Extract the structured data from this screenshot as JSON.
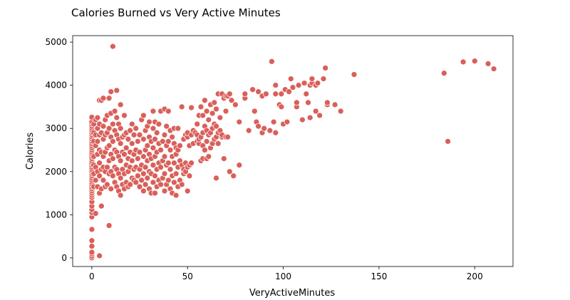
{
  "chart_data": {
    "type": "scatter",
    "title": "Calories Burned vs Very Active Minutes",
    "xlabel": "VeryActiveMinutes",
    "ylabel": "Calories",
    "xlim": [
      -10,
      220
    ],
    "ylim": [
      -200,
      5150
    ],
    "xticks": [
      0,
      50,
      100,
      150,
      200
    ],
    "yticks": [
      0,
      1000,
      2000,
      3000,
      4000,
      5000
    ],
    "grid": false,
    "legend": "none",
    "color": "#d9605a",
    "points": [
      [
        0,
        0
      ],
      [
        0,
        40
      ],
      [
        0,
        90
      ],
      [
        0,
        130
      ],
      [
        0,
        270
      ],
      [
        0,
        400
      ],
      [
        0,
        660
      ],
      [
        0,
        950
      ],
      [
        0,
        1050
      ],
      [
        0,
        1120
      ],
      [
        0,
        1200
      ],
      [
        0,
        1300
      ],
      [
        0,
        1400
      ],
      [
        0,
        1450
      ],
      [
        0,
        1500
      ],
      [
        0,
        1550
      ],
      [
        0,
        1600
      ],
      [
        0,
        1650
      ],
      [
        0,
        1700
      ],
      [
        0,
        1750
      ],
      [
        0,
        1800
      ],
      [
        0,
        1850
      ],
      [
        0,
        1900
      ],
      [
        0,
        1950
      ],
      [
        0,
        2000
      ],
      [
        0,
        2050
      ],
      [
        0,
        2100
      ],
      [
        0,
        2150
      ],
      [
        0,
        2200
      ],
      [
        0,
        2250
      ],
      [
        0,
        2300
      ],
      [
        0,
        2350
      ],
      [
        0,
        2400
      ],
      [
        0,
        2450
      ],
      [
        0,
        2500
      ],
      [
        0,
        2550
      ],
      [
        0,
        2600
      ],
      [
        0,
        2650
      ],
      [
        0,
        2700
      ],
      [
        0,
        2750
      ],
      [
        0,
        2800
      ],
      [
        0,
        2850
      ],
      [
        0,
        2900
      ],
      [
        0,
        2950
      ],
      [
        0,
        3000
      ],
      [
        0,
        3050
      ],
      [
        0,
        3100
      ],
      [
        0,
        3150
      ],
      [
        0,
        3260
      ],
      [
        1,
        1650
      ],
      [
        1,
        1950
      ],
      [
        1,
        2150
      ],
      [
        1,
        2350
      ],
      [
        1,
        2700
      ],
      [
        1,
        2900
      ],
      [
        1,
        3100
      ],
      [
        2,
        1030
      ],
      [
        2,
        1800
      ],
      [
        2,
        2100
      ],
      [
        2,
        2600
      ],
      [
        2,
        2850
      ],
      [
        2,
        3200
      ],
      [
        3,
        1650
      ],
      [
        3,
        2000
      ],
      [
        3,
        2400
      ],
      [
        3,
        2700
      ],
      [
        3,
        3000
      ],
      [
        3,
        3250
      ],
      [
        4,
        50
      ],
      [
        4,
        1500
      ],
      [
        4,
        1900
      ],
      [
        4,
        2200
      ],
      [
        4,
        2500
      ],
      [
        4,
        2850
      ],
      [
        4,
        3100
      ],
      [
        4,
        3650
      ],
      [
        5,
        1200
      ],
      [
        5,
        1600
      ],
      [
        5,
        2050
      ],
      [
        5,
        2450
      ],
      [
        5,
        2900
      ],
      [
        5,
        3650
      ],
      [
        6,
        1800
      ],
      [
        6,
        2100
      ],
      [
        6,
        2350
      ],
      [
        6,
        2750
      ],
      [
        6,
        3050
      ],
      [
        6,
        3700
      ],
      [
        7,
        1650
      ],
      [
        7,
        2000
      ],
      [
        7,
        2450
      ],
      [
        7,
        2850
      ],
      [
        7,
        3200
      ],
      [
        8,
        1700
      ],
      [
        8,
        2100
      ],
      [
        8,
        2550
      ],
      [
        8,
        2900
      ],
      [
        8,
        3300
      ],
      [
        9,
        750
      ],
      [
        9,
        1950
      ],
      [
        9,
        2250
      ],
      [
        9,
        2600
      ],
      [
        9,
        3000
      ],
      [
        9,
        3700
      ],
      [
        10,
        1600
      ],
      [
        10,
        2000
      ],
      [
        10,
        2400
      ],
      [
        10,
        2800
      ],
      [
        10,
        3350
      ],
      [
        10,
        3850
      ],
      [
        11,
        1900
      ],
      [
        11,
        2300
      ],
      [
        11,
        2700
      ],
      [
        11,
        3100
      ],
      [
        11,
        4900
      ],
      [
        12,
        1750
      ],
      [
        12,
        2100
      ],
      [
        12,
        2500
      ],
      [
        12,
        2950
      ],
      [
        12,
        3400
      ],
      [
        13,
        1650
      ],
      [
        13,
        2050
      ],
      [
        13,
        2450
      ],
      [
        13,
        2850
      ],
      [
        13,
        3250
      ],
      [
        13,
        3880
      ],
      [
        14,
        1550
      ],
      [
        14,
        1950
      ],
      [
        14,
        2350
      ],
      [
        14,
        2750
      ],
      [
        14,
        3100
      ],
      [
        15,
        1450
      ],
      [
        15,
        1850
      ],
      [
        15,
        2250
      ],
      [
        15,
        2650
      ],
      [
        15,
        3000
      ],
      [
        15,
        3550
      ],
      [
        16,
        1700
      ],
      [
        16,
        2050
      ],
      [
        16,
        2450
      ],
      [
        16,
        2800
      ],
      [
        17,
        1600
      ],
      [
        17,
        1950
      ],
      [
        17,
        2400
      ],
      [
        17,
        2850
      ],
      [
        17,
        3300
      ],
      [
        18,
        1750
      ],
      [
        18,
        2150
      ],
      [
        18,
        2550
      ],
      [
        18,
        2900
      ],
      [
        19,
        1650
      ],
      [
        19,
        2000
      ],
      [
        19,
        2300
      ],
      [
        19,
        2750
      ],
      [
        20,
        1700
      ],
      [
        20,
        2100
      ],
      [
        20,
        2450
      ],
      [
        20,
        2950
      ],
      [
        21,
        1850
      ],
      [
        21,
        2250
      ],
      [
        21,
        2650
      ],
      [
        21,
        3100
      ],
      [
        22,
        1800
      ],
      [
        22,
        2050
      ],
      [
        22,
        2400
      ],
      [
        22,
        2850
      ],
      [
        23,
        1750
      ],
      [
        23,
        2100
      ],
      [
        23,
        2500
      ],
      [
        23,
        3000
      ],
      [
        24,
        1900
      ],
      [
        24,
        2300
      ],
      [
        24,
        2700
      ],
      [
        25,
        1650
      ],
      [
        25,
        2050
      ],
      [
        25,
        2450
      ],
      [
        25,
        2850
      ],
      [
        26,
        1800
      ],
      [
        26,
        2150
      ],
      [
        26,
        3200
      ],
      [
        27,
        1550
      ],
      [
        27,
        1950
      ],
      [
        27,
        2350
      ],
      [
        27,
        2750
      ],
      [
        27,
        3300
      ],
      [
        28,
        1700
      ],
      [
        28,
        2100
      ],
      [
        28,
        2500
      ],
      [
        28,
        2950
      ],
      [
        29,
        1850
      ],
      [
        29,
        2250
      ],
      [
        29,
        2600
      ],
      [
        29,
        3050
      ],
      [
        30,
        1600
      ],
      [
        30,
        2000
      ],
      [
        30,
        2400
      ],
      [
        30,
        2800
      ],
      [
        30,
        3150
      ],
      [
        31,
        1500
      ],
      [
        31,
        1950
      ],
      [
        31,
        2300
      ],
      [
        31,
        2700
      ],
      [
        32,
        1750
      ],
      [
        32,
        2150
      ],
      [
        32,
        2550
      ],
      [
        32,
        3000
      ],
      [
        32,
        3400
      ],
      [
        33,
        1500
      ],
      [
        33,
        1900
      ],
      [
        33,
        2350
      ],
      [
        33,
        2750
      ],
      [
        33,
        3150
      ],
      [
        34,
        1650
      ],
      [
        34,
        2050
      ],
      [
        34,
        2450
      ],
      [
        34,
        2900
      ],
      [
        35,
        1800
      ],
      [
        35,
        2200
      ],
      [
        35,
        2650
      ],
      [
        35,
        3100
      ],
      [
        36,
        1700
      ],
      [
        36,
        2100
      ],
      [
        36,
        2500
      ],
      [
        36,
        3400
      ],
      [
        37,
        1850
      ],
      [
        37,
        2250
      ],
      [
        37,
        2700
      ],
      [
        38,
        1550
      ],
      [
        38,
        1950
      ],
      [
        38,
        2350
      ],
      [
        38,
        2850
      ],
      [
        38,
        3450
      ],
      [
        39,
        1700
      ],
      [
        39,
        2150
      ],
      [
        39,
        2600
      ],
      [
        39,
        3050
      ],
      [
        40,
        1800
      ],
      [
        40,
        2200
      ],
      [
        40,
        2700
      ],
      [
        40,
        3400
      ],
      [
        41,
        1600
      ],
      [
        41,
        2050
      ],
      [
        41,
        2500
      ],
      [
        41,
        2950
      ],
      [
        42,
        1500
      ],
      [
        42,
        1900
      ],
      [
        42,
        2350
      ],
      [
        42,
        2800
      ],
      [
        43,
        1750
      ],
      [
        43,
        2200
      ],
      [
        43,
        2650
      ],
      [
        43,
        3000
      ],
      [
        44,
        1450
      ],
      [
        44,
        1950
      ],
      [
        44,
        2400
      ],
      [
        44,
        2550
      ],
      [
        45,
        1650
      ],
      [
        45,
        2100
      ],
      [
        45,
        2500
      ],
      [
        45,
        3000
      ],
      [
        46,
        1800
      ],
      [
        46,
        2250
      ],
      [
        46,
        2600
      ],
      [
        47,
        1700
      ],
      [
        47,
        2150
      ],
      [
        47,
        3500
      ],
      [
        48,
        1950
      ],
      [
        48,
        2050
      ],
      [
        48,
        2750
      ],
      [
        49,
        2000
      ],
      [
        49,
        2200
      ],
      [
        49,
        2850
      ],
      [
        50,
        1550
      ],
      [
        50,
        2100
      ],
      [
        50,
        2800
      ],
      [
        50,
        2900
      ],
      [
        51,
        1900
      ],
      [
        51,
        2150
      ],
      [
        51,
        2600
      ],
      [
        52,
        2200
      ],
      [
        52,
        2850
      ],
      [
        52,
        3480
      ],
      [
        53,
        2650
      ],
      [
        53,
        2950
      ],
      [
        54,
        2900
      ],
      [
        55,
        2700
      ],
      [
        55,
        2850
      ],
      [
        55,
        3100
      ],
      [
        56,
        2650
      ],
      [
        56,
        2750
      ],
      [
        56,
        3300
      ],
      [
        57,
        2250
      ],
      [
        57,
        2800
      ],
      [
        57,
        3500
      ],
      [
        58,
        2300
      ],
      [
        58,
        2600
      ],
      [
        58,
        2900
      ],
      [
        58,
        3300
      ],
      [
        59,
        2500
      ],
      [
        59,
        3050
      ],
      [
        59,
        3650
      ],
      [
        60,
        2300
      ],
      [
        60,
        2700
      ],
      [
        60,
        2950
      ],
      [
        60,
        3400
      ],
      [
        61,
        2350
      ],
      [
        61,
        2850
      ],
      [
        61,
        3200
      ],
      [
        62,
        2550
      ],
      [
        62,
        2900
      ],
      [
        62,
        3550
      ],
      [
        63,
        2650
      ],
      [
        63,
        3000
      ],
      [
        63,
        3350
      ],
      [
        64,
        2750
      ],
      [
        64,
        3100
      ],
      [
        64,
        3600
      ],
      [
        65,
        1850
      ],
      [
        65,
        2800
      ],
      [
        65,
        3050
      ],
      [
        65,
        3450
      ],
      [
        66,
        2650
      ],
      [
        66,
        2900
      ],
      [
        66,
        3800
      ],
      [
        67,
        2950
      ],
      [
        67,
        3250
      ],
      [
        68,
        2800
      ],
      [
        68,
        2850
      ],
      [
        68,
        3800
      ],
      [
        69,
        2300
      ],
      [
        69,
        3700
      ],
      [
        70,
        2800
      ],
      [
        70,
        3400
      ],
      [
        70,
        3750
      ],
      [
        71,
        2800
      ],
      [
        71,
        3750
      ],
      [
        72,
        2000
      ],
      [
        72,
        3800
      ],
      [
        73,
        3650
      ],
      [
        74,
        1900
      ],
      [
        75,
        3550
      ],
      [
        77,
        2150
      ],
      [
        77,
        3150
      ],
      [
        80,
        3700
      ],
      [
        80,
        3800
      ],
      [
        82,
        2950
      ],
      [
        84,
        3900
      ],
      [
        85,
        3400
      ],
      [
        86,
        3150
      ],
      [
        87,
        3850
      ],
      [
        87,
        3050
      ],
      [
        89,
        2900
      ],
      [
        89,
        3750
      ],
      [
        90,
        3000
      ],
      [
        91,
        3800
      ],
      [
        93,
        2950
      ],
      [
        94,
        4550
      ],
      [
        95,
        3150
      ],
      [
        96,
        2900
      ],
      [
        96,
        3800
      ],
      [
        96,
        4000
      ],
      [
        98,
        3550
      ],
      [
        99,
        3500
      ],
      [
        99,
        3800
      ],
      [
        100,
        3100
      ],
      [
        101,
        3900
      ],
      [
        102,
        3150
      ],
      [
        103,
        3850
      ],
      [
        104,
        4150
      ],
      [
        105,
        3950
      ],
      [
        107,
        3500
      ],
      [
        107,
        3600
      ],
      [
        108,
        4000
      ],
      [
        110,
        3200
      ],
      [
        111,
        4050
      ],
      [
        112,
        3800
      ],
      [
        113,
        3600
      ],
      [
        114,
        3250
      ],
      [
        114,
        4000
      ],
      [
        115,
        4050
      ],
      [
        115,
        4150
      ],
      [
        117,
        3400
      ],
      [
        117,
        4000
      ],
      [
        118,
        4050
      ],
      [
        119,
        3300
      ],
      [
        121,
        4150
      ],
      [
        122,
        4400
      ],
      [
        123,
        3550
      ],
      [
        123,
        3600
      ],
      [
        127,
        3550
      ],
      [
        130,
        3400
      ],
      [
        137,
        4250
      ],
      [
        184,
        4280
      ],
      [
        186,
        2700
      ],
      [
        194,
        4540
      ],
      [
        200,
        4560
      ],
      [
        207,
        4500
      ],
      [
        210,
        4380
      ]
    ]
  }
}
